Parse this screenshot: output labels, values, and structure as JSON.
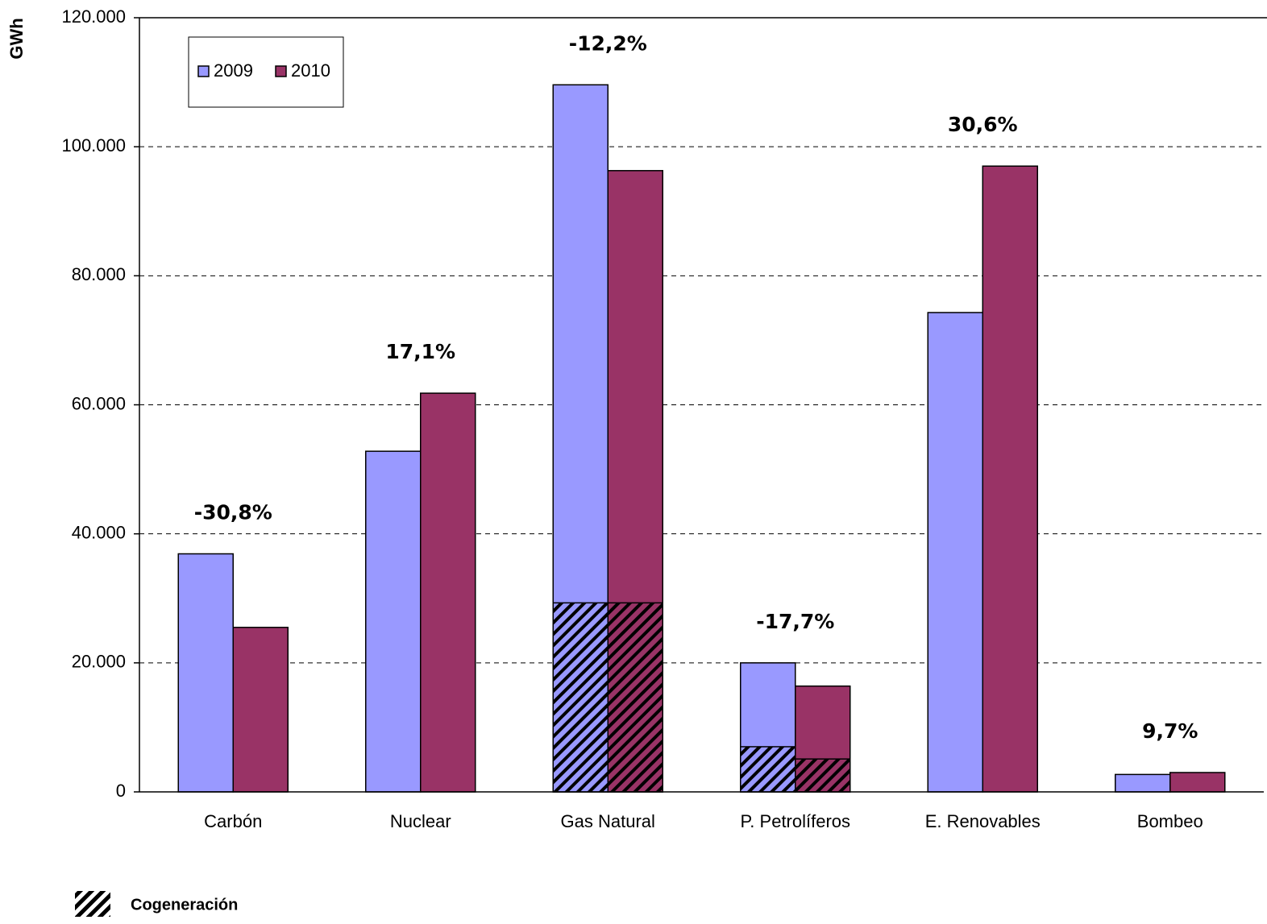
{
  "chart_data": {
    "type": "bar",
    "y_label": "GWh",
    "categories": [
      "Carbón",
      "Nuclear",
      "Gas Natural",
      "P. Petrolíferos",
      "E. Renovables",
      "Bombeo"
    ],
    "series": [
      {
        "name": "2009",
        "color": "#9999ff",
        "values": [
          36900,
          52800,
          109600,
          20000,
          74300,
          2700
        ],
        "cogeneration": [
          null,
          null,
          29300,
          7000,
          null,
          null
        ]
      },
      {
        "name": "2010",
        "color": "#993366",
        "values": [
          25500,
          61800,
          96300,
          16400,
          97000,
          3000
        ],
        "cogeneration": [
          null,
          null,
          29300,
          5100,
          null,
          null
        ]
      }
    ],
    "annotations": [
      "-30,8%",
      "17,1%",
      "-12,2%",
      "-17,7%",
      "30,6%",
      "9,7%"
    ],
    "cogeneration_name": "Cogeneración",
    "ylim": [
      0,
      120000
    ],
    "yticks": [
      0,
      {
        "value": 20000,
        "label": "20.000"
      },
      {
        "value": 40000,
        "label": "40.000"
      },
      {
        "value": 60000,
        "label": "60.000"
      },
      {
        "value": 80000,
        "label": "80.000"
      },
      {
        "value": 100000,
        "label": "100.000"
      },
      {
        "value": 120000,
        "label": "120.000"
      }
    ],
    "grid": true,
    "legend": "top-left"
  }
}
